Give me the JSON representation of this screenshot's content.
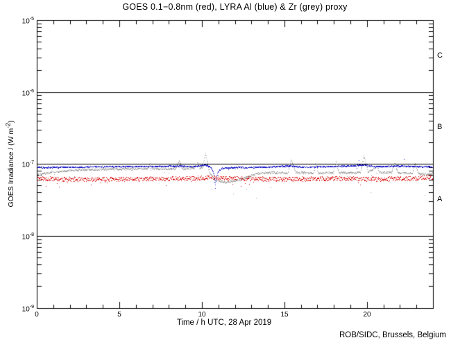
{
  "title": "GOES 0.1−0.8nm (red), LYRA Al (blue) & Zr (grey) proxy",
  "credit": "ROB/SIDC, Brussels, Belgium",
  "chart_data": {
    "type": "scatter",
    "title": "GOES 0.1−0.8nm (red), LYRA Al (blue) & Zr (grey) proxy",
    "xlabel": "Time / h UTC, 28 Apr 2019",
    "ylabel_parts": {
      "prefix": "GOES Irradiance / (W m",
      "sup": "-2",
      "suffix": ")"
    },
    "xlim": [
      0,
      24
    ],
    "x_ticks": [
      {
        "h": 0,
        "label": "0"
      },
      {
        "h": 5,
        "label": "5"
      },
      {
        "h": 10,
        "label": "10"
      },
      {
        "h": 15,
        "label": "15"
      },
      {
        "h": 20,
        "label": "20"
      }
    ],
    "x_minor_step_h": 1,
    "y_tick_base": "10",
    "y_ticks": [
      {
        "exp": "-5"
      },
      {
        "exp": "-6"
      },
      {
        "exp": "-7"
      },
      {
        "exp": "-8"
      },
      {
        "exp": "-9"
      }
    ],
    "y_minor_mantissas": [
      2,
      3,
      4,
      5,
      6,
      7,
      8,
      9
    ],
    "grid": false,
    "hlines_flux": [
      1e-06,
      1e-07,
      1e-08
    ],
    "flare_classes": [
      {
        "label": "C",
        "flux_mid": 3.16e-06
      },
      {
        "label": "B",
        "flux_mid": 3.16e-07
      },
      {
        "label": "A",
        "flux_mid": 3.16e-08
      }
    ],
    "colors": {
      "goes_red": "#d80000",
      "lyra_al_blue": "#1414c8",
      "lyra_zr_grey": "#9e9e9e",
      "frame": "#000000",
      "background": "#ffffff"
    },
    "series": [
      {
        "name": "GOES 0.1−0.8nm",
        "color_key": "goes_red",
        "seed": 11,
        "step_h": 0.02,
        "noise_dex": 0.03,
        "downspike": {
          "prob": 0.02,
          "dex": 0.08
        },
        "keyframes": [
          [
            0,
            6.4e-08
          ],
          [
            1,
            6.2e-08
          ],
          [
            3,
            6.1e-08
          ],
          [
            6,
            6.2e-08
          ],
          [
            9,
            6.3e-08
          ],
          [
            10.3,
            6.5e-08
          ],
          [
            12,
            6.3e-08
          ],
          [
            15,
            6.2e-08
          ],
          [
            18,
            6.3e-08
          ],
          [
            21,
            6.2e-08
          ],
          [
            23,
            6.4e-08
          ],
          [
            24,
            6.6e-08
          ]
        ],
        "extra_points": [
          [
            0.55,
            4.9e-08
          ],
          [
            1.35,
            4.8e-08
          ],
          [
            7.8,
            5e-08
          ]
        ]
      },
      {
        "name": "LYRA Zr proxy",
        "color_key": "lyra_zr_grey",
        "seed": 22,
        "step_h": 0.02,
        "noise_dex": 0.014,
        "downspike": {
          "prob": 0.008,
          "dex": 0.1
        },
        "keyframes": [
          [
            0,
            7.1e-08
          ],
          [
            0.8,
            7.7e-08
          ],
          [
            2,
            8.2e-08
          ],
          [
            3.5,
            8.5e-08
          ],
          [
            6,
            8.6e-08
          ],
          [
            6.7,
            8.6e-08
          ],
          [
            6.85,
            1.03e-07
          ],
          [
            7.0,
            8.6e-08
          ],
          [
            8.4,
            8.7e-08
          ],
          [
            8.6,
            1.12e-07
          ],
          [
            8.8,
            8.7e-08
          ],
          [
            9.55,
            8.8e-08
          ],
          [
            9.7,
            1.06e-07
          ],
          [
            9.85,
            8.8e-08
          ],
          [
            10.05,
            9e-08
          ],
          [
            10.2,
            1.45e-07
          ],
          [
            10.45,
            7.6e-08
          ],
          [
            10.8,
            6e-08
          ],
          [
            11.4,
            5.6e-08
          ],
          [
            12.2,
            6e-08
          ],
          [
            13.0,
            7e-08
          ],
          [
            13.6,
            7.6e-08
          ],
          [
            15.2,
            7.6e-08
          ],
          [
            15.4,
            1.16e-07
          ],
          [
            15.65,
            7.7e-08
          ],
          [
            16.75,
            7.5e-08
          ],
          [
            16.9,
            1.02e-07
          ],
          [
            17.05,
            7.5e-08
          ],
          [
            17.95,
            7.6e-08
          ],
          [
            18.1,
            1.06e-07
          ],
          [
            18.3,
            7.6e-08
          ],
          [
            19.6,
            7.7e-08
          ],
          [
            19.8,
            1.32e-07
          ],
          [
            20.05,
            7.8e-08
          ],
          [
            20.6,
            9.2e-08
          ],
          [
            20.75,
            7.7e-08
          ],
          [
            21.5,
            7.7e-08
          ],
          [
            21.65,
            1.06e-07
          ],
          [
            21.85,
            7.6e-08
          ],
          [
            22.75,
            7.5e-08
          ],
          [
            22.9,
            1.01e-07
          ],
          [
            23.1,
            7.4e-08
          ],
          [
            23.6,
            7.3e-08
          ],
          [
            24,
            7.5e-08
          ]
        ],
        "extra_points": [
          [
            10.6,
            4.4e-08
          ],
          [
            11.9,
            3.9e-08
          ],
          [
            12.7,
            4.5e-08
          ],
          [
            13.3,
            3.4e-08
          ],
          [
            14.15,
            4.7e-08
          ],
          [
            20.2,
            4e-08
          ],
          [
            23.5,
            3.7e-08
          ]
        ]
      },
      {
        "name": "LYRA Al proxy",
        "color_key": "lyra_al_blue",
        "seed": 33,
        "step_h": 0.02,
        "noise_dex": 0.009,
        "downspike": {
          "prob": 0.004,
          "dex": 0.04
        },
        "keyframes": [
          [
            0,
            9e-08
          ],
          [
            2,
            9.1e-08
          ],
          [
            4,
            9.2e-08
          ],
          [
            6.85,
            9.3e-08
          ],
          [
            8.6,
            9.4e-08
          ],
          [
            9.7,
            9.3e-08
          ],
          [
            10.2,
            9.8e-08
          ],
          [
            10.55,
            9e-08
          ],
          [
            10.7,
            7.5e-08
          ],
          [
            10.8,
            5.2e-08
          ],
          [
            10.95,
            7.8e-08
          ],
          [
            11.2,
            8.8e-08
          ],
          [
            12,
            9e-08
          ],
          [
            14,
            9.1e-08
          ],
          [
            15.4,
            9.5e-08
          ],
          [
            16,
            9.1e-08
          ],
          [
            18.1,
            9.3e-08
          ],
          [
            19.8,
            9.7e-08
          ],
          [
            20.5,
            9.2e-08
          ],
          [
            21.65,
            9.4e-08
          ],
          [
            22.9,
            9.3e-08
          ],
          [
            23.5,
            9.2e-08
          ],
          [
            24,
            9.2e-08
          ]
        ],
        "extra_points": [
          [
            19.5,
            1.13e-07
          ],
          [
            22.25,
            1.17e-07
          ],
          [
            10.82,
            4.6e-08
          ]
        ]
      }
    ]
  }
}
